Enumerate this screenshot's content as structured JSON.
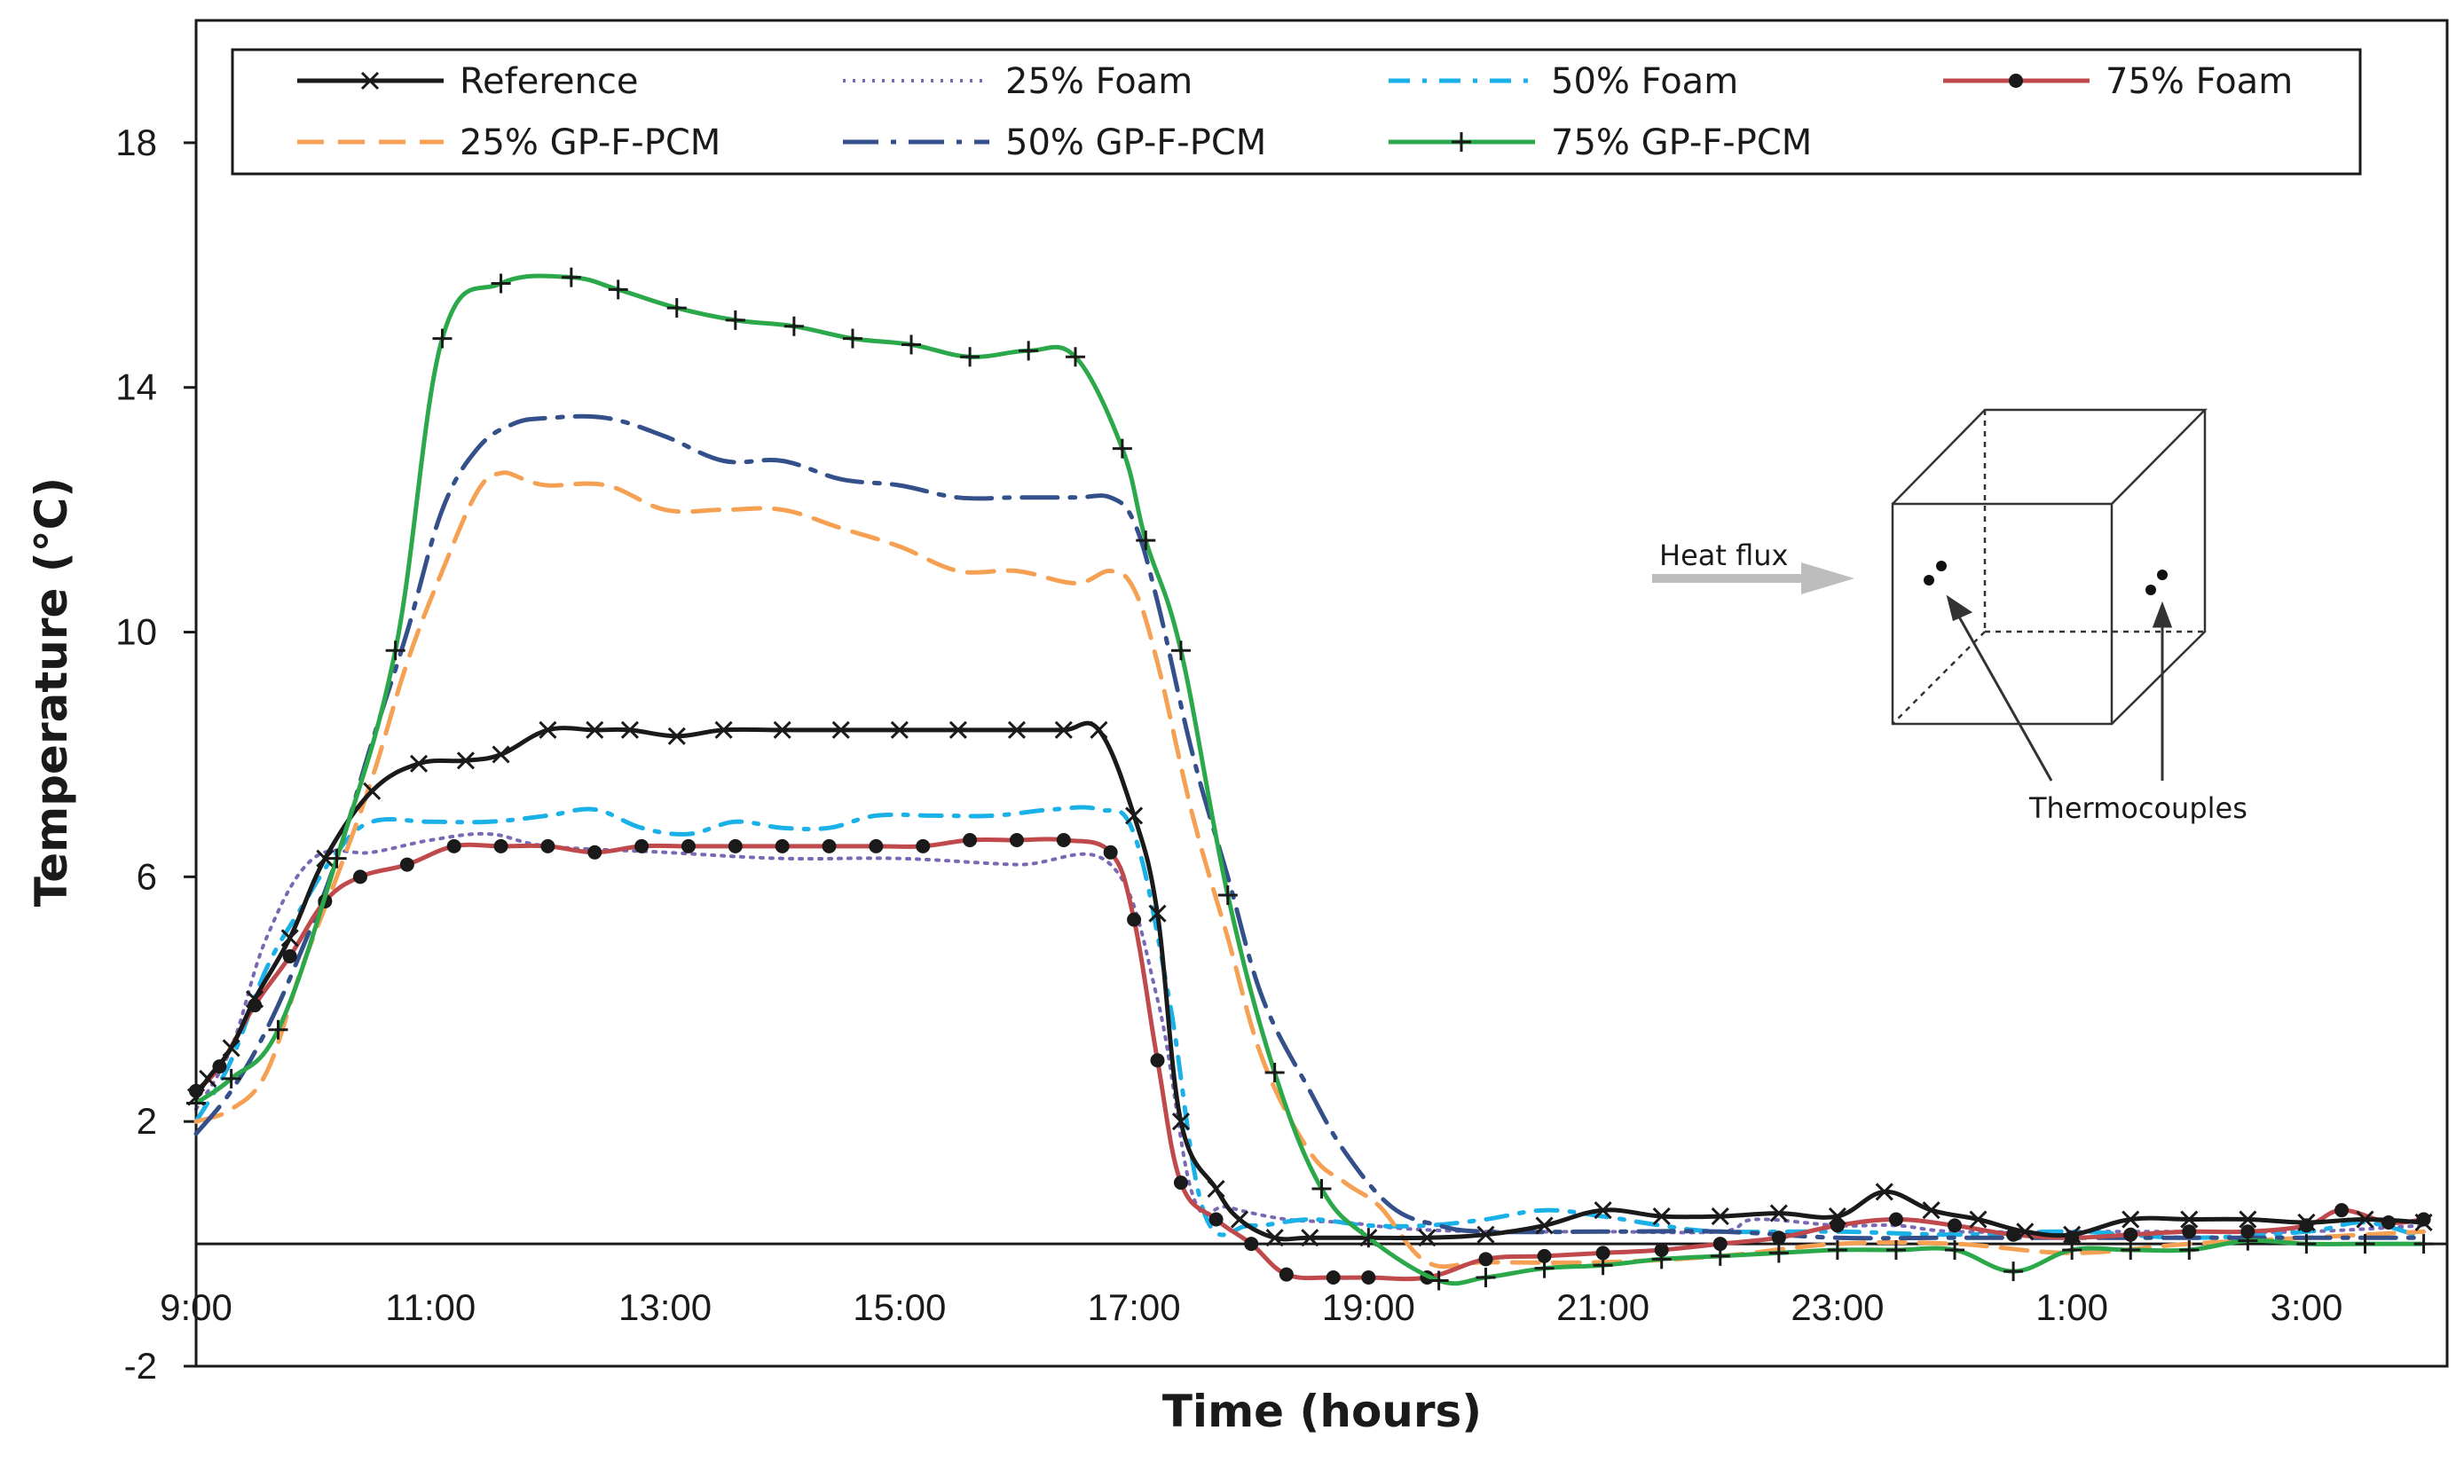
{
  "chart_data": {
    "type": "line",
    "title": "",
    "xlabel": "Time (hours)",
    "ylabel": "Temperature (°C)",
    "ylim": [
      -2,
      20
    ],
    "yticks": [
      -2,
      2,
      6,
      10,
      14,
      18
    ],
    "xlim": [
      9,
      28.2
    ],
    "xticks": [
      {
        "x": 9,
        "label": "9:00"
      },
      {
        "x": 11,
        "label": "11:00"
      },
      {
        "x": 13,
        "label": "13:00"
      },
      {
        "x": 15,
        "label": "15:00"
      },
      {
        "x": 17,
        "label": "17:00"
      },
      {
        "x": 19,
        "label": "19:00"
      },
      {
        "x": 21,
        "label": "21:00"
      },
      {
        "x": 23,
        "label": "23:00"
      },
      {
        "x": 25,
        "label": "1:00"
      },
      {
        "x": 27,
        "label": "3:00"
      }
    ],
    "x_units": "hours since 0:00 on the first day",
    "zero_line": 0,
    "legend_position": "top",
    "series": [
      {
        "name": "Reference",
        "color": "#1a1a1a",
        "style": "solid",
        "marker": "x",
        "x": [
          9,
          9.1,
          9.3,
          9.5,
          9.8,
          10.1,
          10.5,
          10.9,
          11.3,
          11.6,
          12,
          12.4,
          12.7,
          13.1,
          13.5,
          14,
          14.5,
          15,
          15.5,
          16,
          16.4,
          16.7,
          17,
          17.2,
          17.4,
          17.7,
          17.9,
          18.2,
          18.5,
          19,
          19.5,
          20,
          20.5,
          21,
          21.5,
          22,
          22.5,
          23,
          23.4,
          23.8,
          24.2,
          24.6,
          25,
          25.5,
          26,
          26.5,
          27,
          27.5,
          28
        ],
        "y": [
          2.4,
          2.7,
          3.2,
          4.0,
          5.0,
          6.3,
          7.4,
          7.85,
          7.9,
          8.0,
          8.4,
          8.4,
          8.4,
          8.3,
          8.4,
          8.4,
          8.4,
          8.4,
          8.4,
          8.4,
          8.4,
          8.4,
          7.0,
          5.4,
          2.0,
          0.9,
          0.4,
          0.1,
          0.1,
          0.1,
          0.1,
          0.15,
          0.3,
          0.55,
          0.45,
          0.45,
          0.5,
          0.45,
          0.85,
          0.55,
          0.4,
          0.2,
          0.15,
          0.4,
          0.4,
          0.4,
          0.35,
          0.4,
          0.35
        ]
      },
      {
        "name": "25% Foam",
        "color": "#7b68b5",
        "style": "dotted",
        "marker": "none",
        "x": [
          9,
          9.3,
          9.6,
          10,
          10.5,
          11,
          11.5,
          12,
          13,
          14,
          15,
          16,
          16.8,
          17.2,
          17.5,
          17.8,
          18.3,
          18.8,
          19.3,
          20,
          21,
          22,
          22.3,
          23,
          23.5,
          24,
          25,
          26,
          27,
          28
        ],
        "y": [
          2.2,
          3.2,
          5.0,
          6.3,
          6.4,
          6.6,
          6.7,
          6.5,
          6.4,
          6.3,
          6.3,
          6.2,
          6.2,
          4.0,
          0.8,
          0.6,
          0.4,
          0.35,
          0.25,
          0.2,
          0.2,
          0.2,
          0.4,
          0.3,
          0.3,
          0.2,
          0.2,
          0.2,
          0.2,
          0.3
        ]
      },
      {
        "name": "50% Foam",
        "color": "#1ab0e8",
        "style": "dashdot",
        "marker": "none",
        "x": [
          9,
          9.3,
          9.6,
          9.9,
          10.2,
          10.5,
          11,
          11.5,
          12,
          12.4,
          12.8,
          13.2,
          13.6,
          14,
          14.4,
          14.8,
          15.3,
          15.8,
          16.3,
          16.7,
          17,
          17.3,
          17.6,
          18,
          18.5,
          19,
          19.5,
          20,
          20.5,
          21,
          21.5,
          22,
          23,
          24,
          25,
          26,
          27,
          27.5,
          28
        ],
        "y": [
          2.0,
          3.0,
          4.5,
          5.5,
          6.4,
          6.9,
          6.9,
          6.9,
          7.0,
          7.1,
          6.8,
          6.7,
          6.9,
          6.8,
          6.8,
          7.0,
          7.0,
          7.0,
          7.1,
          7.1,
          6.7,
          4.0,
          0.5,
          0.3,
          0.4,
          0.3,
          0.3,
          0.4,
          0.55,
          0.45,
          0.3,
          0.2,
          0.2,
          0.15,
          0.2,
          0.1,
          0.2,
          0.35,
          0.1
        ]
      },
      {
        "name": "75% Foam",
        "color": "#c0494c",
        "style": "solid",
        "marker": "dot",
        "x": [
          9,
          9.2,
          9.5,
          9.8,
          10.1,
          10.4,
          10.8,
          11.2,
          11.6,
          12,
          12.4,
          12.8,
          13.2,
          13.6,
          14,
          14.4,
          14.8,
          15.2,
          15.6,
          16,
          16.4,
          16.8,
          17,
          17.2,
          17.4,
          17.7,
          18,
          18.3,
          18.7,
          19,
          19.5,
          20,
          20.5,
          21,
          21.5,
          22,
          22.5,
          23,
          23.5,
          24,
          24.5,
          25,
          25.5,
          26,
          26.5,
          27,
          27.3,
          27.7,
          28
        ],
        "y": [
          2.5,
          2.9,
          3.9,
          4.7,
          5.6,
          6.0,
          6.2,
          6.5,
          6.5,
          6.5,
          6.4,
          6.5,
          6.5,
          6.5,
          6.5,
          6.5,
          6.5,
          6.5,
          6.6,
          6.6,
          6.6,
          6.4,
          5.3,
          3.0,
          1.0,
          0.4,
          0.0,
          -0.5,
          -0.55,
          -0.55,
          -0.55,
          -0.25,
          -0.2,
          -0.15,
          -0.1,
          0.0,
          0.1,
          0.3,
          0.4,
          0.3,
          0.15,
          0.1,
          0.15,
          0.2,
          0.2,
          0.3,
          0.55,
          0.35,
          0.4
        ]
      },
      {
        "name": "25% GP-F-PCM",
        "color": "#f5a052",
        "style": "dashed",
        "marker": "none",
        "x": [
          9,
          9.3,
          9.6,
          9.9,
          10.2,
          10.5,
          10.8,
          11.1,
          11.4,
          11.6,
          11.8,
          12,
          12.5,
          13,
          13.5,
          14,
          14.5,
          15,
          15.5,
          16,
          16.5,
          16.8,
          17.0,
          17.2,
          17.5,
          17.8,
          18.1,
          18.5,
          18.8,
          19.1,
          19.5,
          20,
          21,
          22,
          23,
          24,
          25,
          26,
          27,
          28
        ],
        "y": [
          2.0,
          2.2,
          2.8,
          4.5,
          6.0,
          7.6,
          9.5,
          11.0,
          12.3,
          12.6,
          12.5,
          12.4,
          12.4,
          12.0,
          12.0,
          12.0,
          11.7,
          11.4,
          11.0,
          11.0,
          10.8,
          11.0,
          10.7,
          9.5,
          7.0,
          5.0,
          3.0,
          1.5,
          1.0,
          0.6,
          -0.3,
          -0.3,
          -0.3,
          -0.2,
          0.0,
          0.0,
          -0.15,
          0.0,
          0.1,
          0.2
        ]
      },
      {
        "name": "50% GP-F-PCM",
        "color": "#34508a",
        "style": "longdashdot",
        "marker": "none",
        "x": [
          9,
          9.3,
          9.6,
          9.9,
          10.2,
          10.5,
          10.8,
          11.1,
          11.4,
          11.7,
          12,
          12.5,
          13,
          13.5,
          14,
          14.5,
          15,
          15.5,
          16,
          16.5,
          16.8,
          17.0,
          17.2,
          17.5,
          17.8,
          18.1,
          18.5,
          18.8,
          19.2,
          19.6,
          20,
          21,
          22,
          23,
          24,
          25,
          26,
          27,
          28
        ],
        "y": [
          1.8,
          2.5,
          3.5,
          4.8,
          6.3,
          8.2,
          10.0,
          12.0,
          13.0,
          13.4,
          13.5,
          13.5,
          13.2,
          12.8,
          12.8,
          12.5,
          12.4,
          12.2,
          12.2,
          12.2,
          12.2,
          11.8,
          10.5,
          8.0,
          6.0,
          4.0,
          2.5,
          1.5,
          0.6,
          0.3,
          0.2,
          0.2,
          0.2,
          0.1,
          0.1,
          0.1,
          0.1,
          0.1,
          0.1
        ]
      },
      {
        "name": "75% GP-F-PCM",
        "color": "#2ba84a",
        "style": "solid",
        "marker": "plus",
        "x": [
          9,
          9.3,
          9.7,
          10.2,
          10.7,
          11.1,
          11.6,
          12.2,
          12.6,
          13.1,
          13.6,
          14.1,
          14.6,
          15.1,
          15.6,
          16.1,
          16.5,
          16.9,
          17.1,
          17.4,
          17.8,
          18.2,
          18.6,
          19.0,
          19.6,
          20.0,
          20.5,
          21,
          21.5,
          22,
          22.5,
          23,
          23.5,
          24,
          24.5,
          25,
          25.5,
          26,
          26.5,
          27,
          27.5,
          28
        ],
        "y": [
          2.3,
          2.7,
          3.5,
          6.3,
          9.7,
          14.8,
          15.7,
          15.8,
          15.6,
          15.3,
          15.1,
          15.0,
          14.8,
          14.7,
          14.5,
          14.6,
          14.5,
          13.0,
          11.5,
          9.7,
          5.7,
          2.8,
          0.9,
          0.1,
          -0.6,
          -0.55,
          -0.4,
          -0.35,
          -0.25,
          -0.2,
          -0.15,
          -0.1,
          -0.1,
          -0.1,
          -0.45,
          -0.1,
          -0.1,
          -0.1,
          0.05,
          0.0,
          0.0,
          0.0
        ]
      }
    ],
    "annotations": {
      "heat_flux_label": "Heat flux",
      "thermocouples_label": "Thermocouples"
    }
  }
}
